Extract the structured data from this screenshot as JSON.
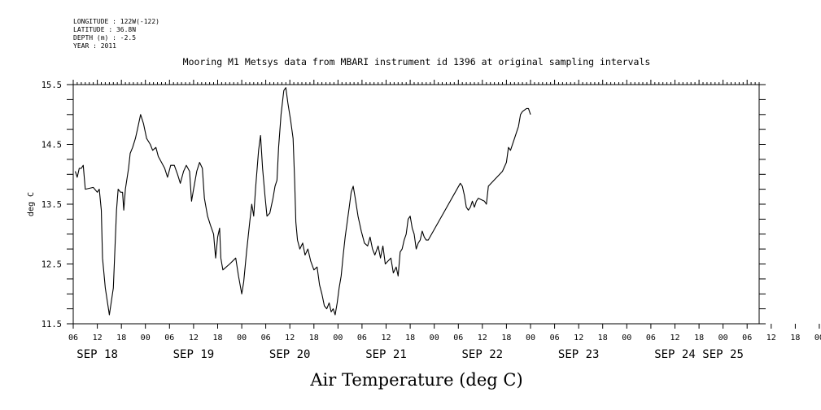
{
  "header": {
    "longitude": "LONGITUDE : 122W(-122)",
    "latitude": "LATITUDE : 36.8N",
    "depth": "DEPTH (m) : -2.5",
    "year": "YEAR : 2011"
  },
  "chart_data": {
    "type": "line",
    "title": "Mooring M1 Metsys data from MBARI instrument id 1396 at original sampling intervals",
    "xlabel": "Air Temperature (deg C)",
    "ylabel": "deg C",
    "ylim": [
      11.5,
      15.5
    ],
    "yticks": [
      11.5,
      12.5,
      13.5,
      14.5,
      15.5
    ],
    "yminor": 0.25,
    "xlim_hours": [
      6,
      177
    ],
    "x_unit": "hours after 2011-09-18 00:00",
    "hour_ticks": [
      "06",
      "12",
      "18",
      "00",
      "06",
      "12",
      "18",
      "00",
      "06",
      "12",
      "18",
      "00",
      "06",
      "12",
      "18",
      "00",
      "06",
      "12",
      "18",
      "00",
      "06",
      "12",
      "18",
      "00",
      "06",
      "12",
      "18",
      "00",
      "06",
      "12",
      "18",
      "00"
    ],
    "date_labels": [
      {
        "label": "SEP 18",
        "x": 12
      },
      {
        "label": "SEP 19",
        "x": 36
      },
      {
        "label": "SEP 20",
        "x": 60
      },
      {
        "label": "SEP 21",
        "x": 84
      },
      {
        "label": "SEP 22",
        "x": 108
      },
      {
        "label": "SEP 23",
        "x": 132
      },
      {
        "label": "SEP 24",
        "x": 156
      },
      {
        "label": "SEP 25",
        "x": 168
      }
    ],
    "grid": false,
    "series": [
      {
        "values": [
          [
            6.5,
            14.05
          ],
          [
            7.0,
            13.95
          ],
          [
            7.5,
            14.1
          ],
          [
            8.0,
            14.1
          ],
          [
            8.5,
            14.15
          ],
          [
            9.0,
            13.75
          ],
          [
            11.0,
            13.78
          ],
          [
            12.0,
            13.7
          ],
          [
            12.5,
            13.75
          ],
          [
            13.0,
            13.4
          ],
          [
            13.3,
            12.6
          ],
          [
            14.0,
            12.1
          ],
          [
            15.0,
            11.65
          ],
          [
            16.0,
            12.1
          ],
          [
            16.8,
            13.4
          ],
          [
            17.2,
            13.75
          ],
          [
            17.8,
            13.7
          ],
          [
            18.3,
            13.7
          ],
          [
            18.6,
            13.4
          ],
          [
            19.0,
            13.75
          ],
          [
            19.8,
            14.1
          ],
          [
            20.2,
            14.35
          ],
          [
            20.8,
            14.45
          ],
          [
            21.5,
            14.6
          ],
          [
            22.0,
            14.75
          ],
          [
            22.8,
            15.0
          ],
          [
            23.5,
            14.85
          ],
          [
            24.3,
            14.6
          ],
          [
            25.2,
            14.5
          ],
          [
            25.8,
            14.4
          ],
          [
            26.6,
            14.45
          ],
          [
            27.2,
            14.3
          ],
          [
            28.0,
            14.2
          ],
          [
            28.8,
            14.1
          ],
          [
            29.5,
            13.95
          ],
          [
            30.3,
            14.15
          ],
          [
            31.2,
            14.15
          ],
          [
            32.0,
            14.0
          ],
          [
            32.7,
            13.85
          ],
          [
            33.5,
            14.05
          ],
          [
            34.2,
            14.15
          ],
          [
            35.0,
            14.05
          ],
          [
            35.5,
            13.55
          ],
          [
            36.0,
            13.75
          ],
          [
            36.8,
            14.05
          ],
          [
            37.5,
            14.2
          ],
          [
            38.2,
            14.1
          ],
          [
            38.7,
            13.6
          ],
          [
            39.5,
            13.3
          ],
          [
            40.2,
            13.15
          ],
          [
            41.0,
            13.0
          ],
          [
            41.5,
            12.6
          ],
          [
            42.0,
            12.95
          ],
          [
            42.5,
            13.1
          ],
          [
            42.8,
            12.6
          ],
          [
            43.3,
            12.4
          ],
          [
            45.0,
            12.5
          ],
          [
            46.5,
            12.6
          ],
          [
            47.2,
            12.3
          ],
          [
            48.0,
            12.0
          ],
          [
            48.5,
            12.2
          ],
          [
            49.2,
            12.7
          ],
          [
            50.0,
            13.2
          ],
          [
            50.5,
            13.5
          ],
          [
            51.0,
            13.3
          ],
          [
            51.5,
            13.8
          ],
          [
            52.2,
            14.4
          ],
          [
            52.7,
            14.65
          ],
          [
            53.2,
            14.1
          ],
          [
            53.8,
            13.65
          ],
          [
            54.3,
            13.3
          ],
          [
            55.0,
            13.35
          ],
          [
            55.8,
            13.6
          ],
          [
            56.3,
            13.8
          ],
          [
            56.8,
            13.9
          ],
          [
            57.2,
            14.45
          ],
          [
            57.8,
            15.0
          ],
          [
            58.5,
            15.4
          ],
          [
            59.0,
            15.45
          ],
          [
            59.5,
            15.2
          ],
          [
            60.2,
            14.9
          ],
          [
            60.8,
            14.6
          ],
          [
            61.2,
            13.9
          ],
          [
            61.5,
            13.2
          ],
          [
            61.9,
            12.9
          ],
          [
            62.5,
            12.75
          ],
          [
            63.2,
            12.85
          ],
          [
            63.8,
            12.65
          ],
          [
            64.5,
            12.75
          ],
          [
            65.2,
            12.55
          ],
          [
            66.0,
            12.4
          ],
          [
            66.8,
            12.45
          ],
          [
            67.4,
            12.15
          ],
          [
            68.0,
            12.0
          ],
          [
            68.6,
            11.8
          ],
          [
            69.2,
            11.75
          ],
          [
            69.8,
            11.85
          ],
          [
            70.3,
            11.7
          ],
          [
            70.8,
            11.75
          ],
          [
            71.3,
            11.65
          ],
          [
            71.8,
            11.85
          ],
          [
            72.3,
            12.1
          ],
          [
            72.8,
            12.3
          ],
          [
            73.3,
            12.65
          ],
          [
            73.8,
            12.95
          ],
          [
            74.3,
            13.2
          ],
          [
            74.8,
            13.45
          ],
          [
            75.3,
            13.7
          ],
          [
            75.8,
            13.8
          ],
          [
            76.3,
            13.6
          ],
          [
            77.0,
            13.3
          ],
          [
            77.8,
            13.05
          ],
          [
            78.6,
            12.85
          ],
          [
            79.4,
            12.8
          ],
          [
            80.0,
            12.95
          ],
          [
            80.6,
            12.75
          ],
          [
            81.2,
            12.65
          ],
          [
            82.0,
            12.8
          ],
          [
            82.6,
            12.6
          ],
          [
            83.2,
            12.8
          ],
          [
            83.8,
            12.5
          ],
          [
            84.5,
            12.55
          ],
          [
            85.2,
            12.6
          ],
          [
            85.8,
            12.35
          ],
          [
            86.5,
            12.45
          ],
          [
            87.0,
            12.3
          ],
          [
            87.5,
            12.7
          ],
          [
            88.0,
            12.75
          ],
          [
            88.5,
            12.9
          ],
          [
            89.0,
            13.0
          ],
          [
            89.5,
            13.25
          ],
          [
            90.0,
            13.3
          ],
          [
            90.5,
            13.1
          ],
          [
            91.0,
            13.0
          ],
          [
            91.5,
            12.75
          ],
          [
            92.0,
            12.85
          ],
          [
            92.5,
            12.9
          ],
          [
            93.0,
            13.05
          ],
          [
            93.5,
            12.95
          ],
          [
            94.0,
            12.9
          ],
          [
            94.3,
            12.9
          ],
          [
            94.5,
            12.9
          ],
          [
            102.5,
            13.85
          ],
          [
            103.0,
            13.8
          ],
          [
            103.5,
            13.65
          ],
          [
            104.0,
            13.45
          ],
          [
            104.5,
            13.4
          ],
          [
            105.0,
            13.45
          ],
          [
            105.5,
            13.55
          ],
          [
            106.0,
            13.45
          ],
          [
            106.5,
            13.55
          ],
          [
            107.0,
            13.6
          ],
          [
            108.5,
            13.55
          ],
          [
            109.0,
            13.5
          ],
          [
            109.5,
            13.8
          ],
          [
            113.0,
            14.05
          ],
          [
            114.0,
            14.2
          ],
          [
            114.5,
            14.45
          ],
          [
            115.0,
            14.4
          ],
          [
            116.0,
            14.6
          ],
          [
            117.0,
            14.8
          ],
          [
            117.5,
            15.0
          ],
          [
            118.0,
            15.05
          ],
          [
            119.0,
            15.1
          ],
          [
            119.5,
            15.1
          ],
          [
            120.0,
            15.0
          ]
        ]
      }
    ]
  }
}
